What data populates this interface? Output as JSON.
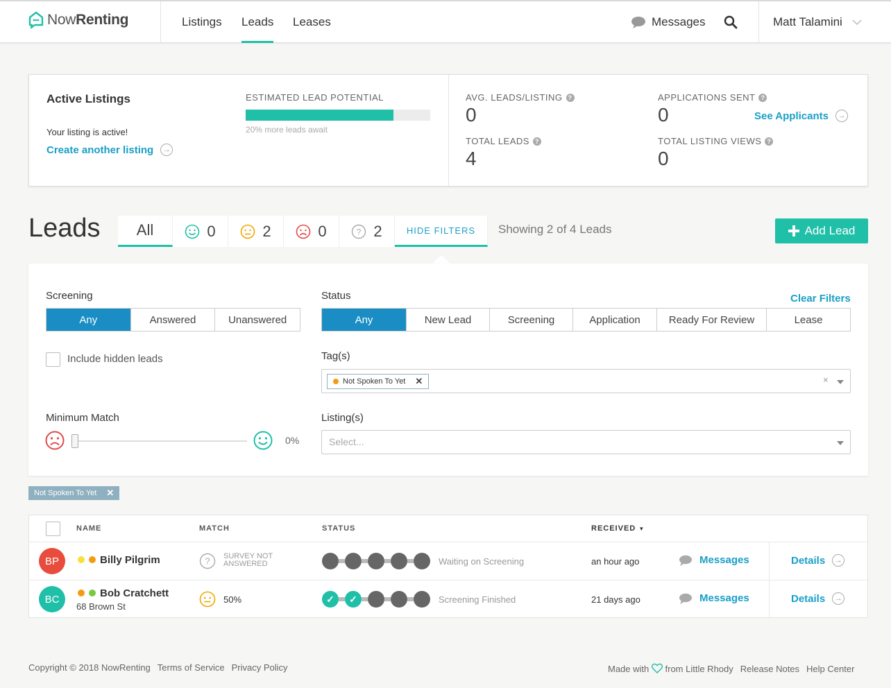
{
  "brand": {
    "name_light": "Now",
    "name_bold": "Renting"
  },
  "nav": {
    "links": [
      "Listings",
      "Leads",
      "Leases"
    ],
    "messages": "Messages",
    "user": "Matt Talamini"
  },
  "stats": {
    "active_title": "Active Listings",
    "active_text": "Your listing is active!",
    "create_link": "Create another listing",
    "potential_label": "ESTIMATED LEAD POTENTIAL",
    "potential_fraction": 0.8,
    "potential_note": "20% more leads await",
    "avg_label": "AVG. LEADS/LISTING",
    "avg_value": "0",
    "total_label": "TOTAL LEADS",
    "total_value": "4",
    "apps_label": "APPLICATIONS SENT",
    "apps_value": "0",
    "see_applicants": "See Applicants",
    "views_label": "TOTAL LISTING VIEWS",
    "views_value": "0"
  },
  "leads": {
    "title": "Leads",
    "tab_all": "All",
    "count_happy": "0",
    "count_neutral": "2",
    "count_sad": "0",
    "count_unknown": "2",
    "hide_filters": "HIDE FILTERS",
    "showing": "Showing 2 of 4 Leads",
    "add_lead": "Add Lead"
  },
  "filters": {
    "screening_label": "Screening",
    "screening_options": [
      "Any",
      "Answered",
      "Unanswered"
    ],
    "status_label": "Status",
    "status_options": [
      "Any",
      "New Lead",
      "Screening",
      "Application",
      "Ready For Review",
      "Lease"
    ],
    "clear": "Clear Filters",
    "include_hidden": "Include hidden leads",
    "tags_label": "Tag(s)",
    "tag_chip": "Not Spoken To Yet",
    "min_match_label": "Minimum Match",
    "min_match_value": "0%",
    "listings_label": "Listing(s)",
    "listings_placeholder": "Select..."
  },
  "applied_chip": "Not Spoken To Yet",
  "table": {
    "headers": {
      "name": "NAME",
      "match": "MATCH",
      "status": "STATUS",
      "received": "RECEIVED"
    },
    "rows": [
      {
        "initials": "BP",
        "avatar_color": "#e74c3c",
        "name": "Billy Pilgrim",
        "address": "",
        "dots": [
          "#f5e13a",
          "#f39c12"
        ],
        "match": "SURVEY NOT ANSWERED",
        "status": "Waiting on Screening",
        "received": "an hour ago",
        "messages": "Messages",
        "details": "Details"
      },
      {
        "initials": "BC",
        "avatar_color": "#1fbfa8",
        "name": "Bob Cratchett",
        "address": "68 Brown St",
        "dots": [
          "#f39c12",
          "#7ac943"
        ],
        "match": "50%",
        "status": "Screening Finished",
        "received": "21 days ago",
        "messages": "Messages",
        "details": "Details"
      }
    ]
  },
  "footer": {
    "copyright": "Copyright © 2018 NowRenting",
    "terms": "Terms of Service",
    "privacy": "Privacy Policy",
    "made_with": "Made with",
    "from": "from Little Rhody",
    "release": "Release Notes",
    "help": "Help Center"
  },
  "colors": {
    "accent": "#1fbfa8",
    "link": "#1a9fc7",
    "selected": "#1a8ec4"
  }
}
